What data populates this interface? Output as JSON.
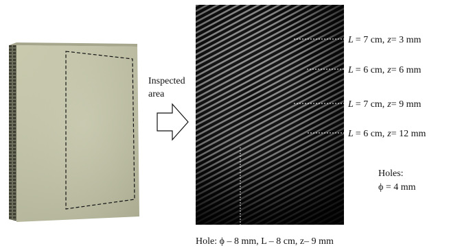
{
  "arrow_label": {
    "line1": "Inspected",
    "line2": "area"
  },
  "defects": [
    {
      "L_value": "= 7 cm,",
      "z_value": "= 3 mm"
    },
    {
      "L_value": "= 6 cm,",
      "z_value": "= 6 mm"
    },
    {
      "L_value": "= 7 cm,",
      "z_value": "= 9 mm"
    },
    {
      "L_value": "= 6 cm,",
      "z_value": "= 12 mm"
    }
  ],
  "defect_symbols": {
    "L": "L",
    "z": "z"
  },
  "holes_note": {
    "title": "Holes:",
    "value": "ϕ = 4 mm"
  },
  "bottom_caption": "Hole: ϕ – 8 mm, L – 8 cm, z– 9 mm",
  "colors": {
    "panel_face": "#bdbea2",
    "panel_edge": "#8f907a",
    "fringe_bg": "#0c0c0c",
    "fringe_light": "#bfbfbf",
    "leader_line": "#ffffff"
  }
}
